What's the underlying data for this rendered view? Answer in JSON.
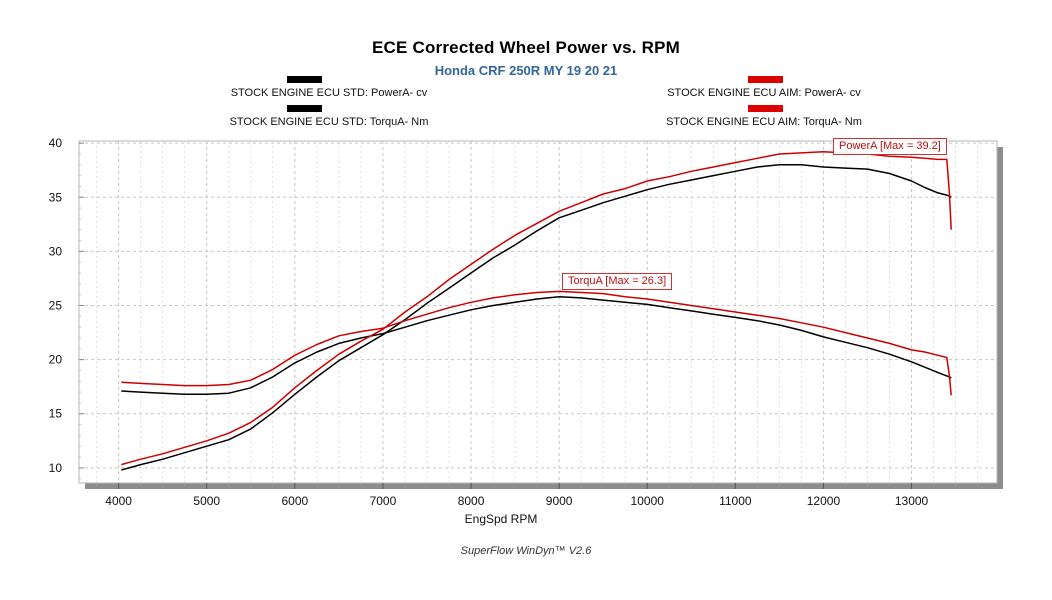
{
  "header": {
    "title": "ECE Corrected Wheel Power vs. RPM",
    "subtitle": "Honda CRF 250R MY 19 20 21",
    "subtitle_color": "#336699"
  },
  "legend": {
    "items": [
      {
        "label": "STOCK ENGINE ECU STD: PowerA- cv",
        "color": "#000000"
      },
      {
        "label": "STOCK ENGINE ECU STD: TorquA- Nm",
        "color": "#000000"
      },
      {
        "label": "STOCK ENGINE ECU AIM: PowerA- cv",
        "color": "#dd0000"
      },
      {
        "label": "STOCK ENGINE ECU AIM: TorquA- Nm",
        "color": "#dd0000"
      }
    ]
  },
  "annotations": {
    "power_max": "PowerA [Max = 39.2]",
    "torque_max": "TorquA [Max = 26.3]"
  },
  "footer": {
    "text": "SuperFlow WinDyn™ V2.6"
  },
  "chart_data": {
    "type": "line",
    "title": "ECE Corrected Wheel Power vs. RPM",
    "subtitle": "Honda CRF 250R MY 19 20 21",
    "xlabel": "EngSpd  RPM",
    "ylabel": "",
    "xlim": [
      3550,
      13970
    ],
    "ylim": [
      8.6,
      40.2
    ],
    "x_ticks": [
      4000,
      5000,
      6000,
      7000,
      8000,
      9000,
      10000,
      11000,
      12000,
      13000
    ],
    "y_ticks": [
      10,
      15,
      20,
      25,
      30,
      35,
      40
    ],
    "grid": "dashed major gridlines, minor vertical every 250 rpm",
    "legend_position": "top",
    "x": [
      4030,
      4250,
      4500,
      4750,
      5000,
      5250,
      5500,
      5750,
      6000,
      6250,
      6500,
      6750,
      7000,
      7250,
      7500,
      7750,
      8000,
      8250,
      8500,
      8750,
      9000,
      9250,
      9500,
      9750,
      10000,
      10250,
      10500,
      10750,
      11000,
      11250,
      11500,
      11750,
      12000,
      12250,
      12500,
      12750,
      13000,
      13150,
      13300,
      13400,
      13430,
      13450
    ],
    "series": [
      {
        "id": "std-power",
        "name": "STOCK ENGINE ECU STD: PowerA- cv",
        "color": "#000000",
        "max": 38.0,
        "values": [
          9.8,
          10.3,
          10.8,
          11.4,
          12.0,
          12.6,
          13.6,
          15.1,
          16.8,
          18.4,
          19.9,
          21.1,
          22.3,
          23.7,
          25.2,
          26.6,
          28.0,
          29.4,
          30.6,
          31.9,
          33.1,
          33.8,
          34.5,
          35.1,
          35.7,
          36.2,
          36.6,
          37.0,
          37.4,
          37.8,
          38.0,
          38.0,
          37.8,
          37.7,
          37.6,
          37.2,
          36.5,
          35.9,
          35.4,
          35.2,
          35.1,
          35.0
        ]
      },
      {
        "id": "std-torque",
        "name": "STOCK ENGINE ECU STD: TorquA- Nm",
        "color": "#000000",
        "max": 25.8,
        "values": [
          17.1,
          17.0,
          16.9,
          16.8,
          16.8,
          16.9,
          17.4,
          18.4,
          19.7,
          20.7,
          21.5,
          22.0,
          22.4,
          23.0,
          23.6,
          24.1,
          24.6,
          25.0,
          25.3,
          25.6,
          25.8,
          25.7,
          25.5,
          25.3,
          25.1,
          24.8,
          24.5,
          24.2,
          23.9,
          23.6,
          23.2,
          22.7,
          22.1,
          21.6,
          21.1,
          20.5,
          19.8,
          19.3,
          18.8,
          18.5,
          18.4,
          18.3
        ]
      },
      {
        "id": "aim-power",
        "name": "STOCK ENGINE ECU AIM: PowerA- cv",
        "color": "#cc0000",
        "max": 39.2,
        "values": [
          10.3,
          10.8,
          11.3,
          11.9,
          12.5,
          13.2,
          14.2,
          15.6,
          17.4,
          19.0,
          20.5,
          21.7,
          22.8,
          24.4,
          25.8,
          27.4,
          28.8,
          30.2,
          31.5,
          32.6,
          33.7,
          34.5,
          35.3,
          35.8,
          36.5,
          36.9,
          37.4,
          37.8,
          38.2,
          38.6,
          39.0,
          39.1,
          39.2,
          39.1,
          39.0,
          38.8,
          38.7,
          38.6,
          38.5,
          38.5,
          35.4,
          32.0
        ]
      },
      {
        "id": "aim-torque",
        "name": "STOCK ENGINE ECU AIM: TorquA- Nm",
        "color": "#cc0000",
        "max": 26.3,
        "values": [
          17.9,
          17.8,
          17.7,
          17.6,
          17.6,
          17.7,
          18.1,
          19.1,
          20.4,
          21.4,
          22.2,
          22.6,
          22.9,
          23.6,
          24.2,
          24.8,
          25.3,
          25.7,
          26.0,
          26.2,
          26.3,
          26.2,
          26.1,
          25.8,
          25.6,
          25.3,
          25.0,
          24.7,
          24.4,
          24.1,
          23.8,
          23.4,
          23.0,
          22.5,
          22.0,
          21.5,
          20.9,
          20.7,
          20.4,
          20.2,
          18.5,
          16.7
        ]
      }
    ]
  }
}
